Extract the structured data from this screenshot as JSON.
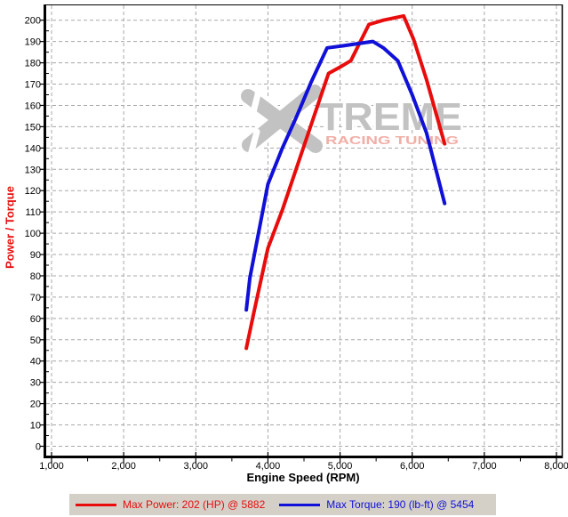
{
  "watermark": {
    "x_glyph": "X",
    "brand": "TREME",
    "tagline": "RACING TUNING",
    "gray": "#c2c2c2",
    "pink": "#f1aea6"
  },
  "legend_bg": "#d4d0c8",
  "chart_data": {
    "type": "line",
    "title": "",
    "xlabel": "Engine Speed (RPM)",
    "ylabel": "Power / Torque",
    "ylabel_color": "#e80c0c",
    "grid": true,
    "grid_color": "#a8a8a8",
    "legend_position": "bottom",
    "xlim": [
      1000,
      8000
    ],
    "ylim": [
      0,
      200
    ],
    "x_ticks": [
      1000,
      2000,
      3000,
      4000,
      5000,
      6000,
      7000,
      8000
    ],
    "x_tick_labels": [
      "1,000",
      "2,000",
      "3,000",
      "4,000",
      "5,000",
      "6,000",
      "7,000",
      "8,000"
    ],
    "x_minor_ticks": [
      1500,
      2500,
      3500,
      4500,
      5500,
      6500,
      7500
    ],
    "y_ticks": [
      0,
      10,
      20,
      30,
      40,
      50,
      60,
      70,
      80,
      90,
      100,
      110,
      120,
      130,
      140,
      150,
      160,
      170,
      180,
      190,
      200
    ],
    "series": [
      {
        "name": "Power",
        "unit": "HP",
        "color": "#e80c0c",
        "max_value": 202,
        "max_rpm": 5882,
        "legend_label": "Max Power: 202 (HP) @ 5882",
        "points": [
          [
            3700,
            46
          ],
          [
            3800,
            62
          ],
          [
            4000,
            93
          ],
          [
            4200,
            111
          ],
          [
            4400,
            131
          ],
          [
            4600,
            151
          ],
          [
            4840,
            175
          ],
          [
            5000,
            178
          ],
          [
            5150,
            181
          ],
          [
            5400,
            198
          ],
          [
            5600,
            200
          ],
          [
            5882,
            202
          ],
          [
            6020,
            191
          ],
          [
            6200,
            172
          ],
          [
            6450,
            142
          ]
        ]
      },
      {
        "name": "Torque",
        "unit": "lb-ft",
        "color": "#1010d8",
        "max_value": 190,
        "max_rpm": 5454,
        "legend_label": "Max Torque: 190 (lb-ft) @ 5454",
        "points": [
          [
            3700,
            64
          ],
          [
            3750,
            79
          ],
          [
            4000,
            123
          ],
          [
            4200,
            140
          ],
          [
            4400,
            155
          ],
          [
            4600,
            171
          ],
          [
            4820,
            187
          ],
          [
            5050,
            188
          ],
          [
            5250,
            189
          ],
          [
            5454,
            190
          ],
          [
            5600,
            187
          ],
          [
            5800,
            181
          ],
          [
            6000,
            165
          ],
          [
            6200,
            147
          ],
          [
            6450,
            114
          ]
        ]
      }
    ]
  }
}
